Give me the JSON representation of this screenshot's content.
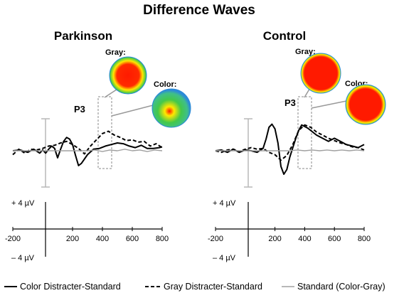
{
  "header": {
    "title": "Difference Waves"
  },
  "panels": [
    {
      "name": "Parkinson",
      "component_label": "P3",
      "topo_gray_label": "Gray:",
      "topo_color_label": "Color:"
    },
    {
      "name": "Control",
      "component_label": "P3",
      "topo_gray_label": "Gray:",
      "topo_color_label": "Color:"
    }
  ],
  "scale": {
    "pos_label": "+ 4 µV",
    "neg_label": "– 4 µV"
  },
  "legend": {
    "color_distracter": "Color Distracter-Standard",
    "gray_distracter": "Gray Distracter-Standard",
    "standard": "Standard (Color-Gray)"
  },
  "colors": {
    "topo_high": "#ff1a00",
    "topo_mid": "#ffe800",
    "topo_low": "#2b8ad8",
    "standard_line": "#a0a0a0"
  },
  "chart_data": [
    {
      "type": "line",
      "title": "Parkinson",
      "xlabel": "",
      "ylabel": "",
      "x_ticks": [
        "-200",
        "200",
        "400",
        "600",
        "800"
      ],
      "xlim": [
        -200,
        800
      ],
      "ylim": [
        -4,
        4
      ],
      "series": [
        {
          "name": "Color Distracter-Standard",
          "style": "solid",
          "x": [
            -200,
            -150,
            -100,
            -60,
            -20,
            0,
            20,
            40,
            60,
            80,
            100,
            120,
            140,
            160,
            180,
            200,
            220,
            240,
            260,
            300,
            340,
            380,
            420,
            460,
            500,
            540,
            580,
            620,
            660,
            700,
            740,
            780,
            800
          ],
          "y": [
            0,
            0.1,
            -0.2,
            0.2,
            -0.3,
            0.1,
            -0.3,
            0.2,
            0.6,
            0.3,
            -0.9,
            0.2,
            1.2,
            1.7,
            1.5,
            0.8,
            -0.6,
            -1.9,
            -1.6,
            -0.5,
            0.2,
            0.3,
            0.6,
            0.8,
            1.0,
            0.9,
            0.6,
            0.4,
            0.7,
            0.3,
            0.3,
            0.4,
            0.5
          ]
        },
        {
          "name": "Gray Distracter-Standard",
          "style": "dashed",
          "x": [
            -200,
            -160,
            -120,
            -80,
            -40,
            0,
            40,
            80,
            120,
            160,
            200,
            240,
            280,
            320,
            360,
            400,
            440,
            480,
            520,
            560,
            600,
            640,
            680,
            720,
            760,
            800
          ],
          "y": [
            -0.5,
            0.2,
            -0.3,
            0.2,
            0.1,
            0.3,
            0.6,
            0.7,
            1.0,
            1.2,
            0.8,
            0.3,
            -0.4,
            0.6,
            1.4,
            2.2,
            2.5,
            2.0,
            1.7,
            1.3,
            1.4,
            1.1,
            1.2,
            0.6,
            0.9,
            0.4
          ]
        },
        {
          "name": "Standard (Color-Gray)",
          "style": "gray",
          "x": [
            -200,
            -100,
            0,
            100,
            200,
            300,
            350,
            400,
            450,
            500,
            550,
            600,
            650,
            700,
            750,
            800
          ],
          "y": [
            0,
            0,
            0,
            0,
            0,
            0,
            0.1,
            -0.1,
            0.1,
            0,
            0.2,
            0,
            0.1,
            -0.1,
            0.1,
            0
          ]
        }
      ]
    },
    {
      "type": "line",
      "title": "Control",
      "xlabel": "",
      "ylabel": "",
      "x_ticks": [
        "-200",
        "200",
        "400",
        "600",
        "800"
      ],
      "xlim": [
        -200,
        800
      ],
      "ylim": [
        -4,
        4
      ],
      "series": [
        {
          "name": "Color Distracter-Standard",
          "style": "solid",
          "x": [
            -200,
            -160,
            -120,
            -80,
            -40,
            0,
            40,
            80,
            120,
            140,
            160,
            180,
            200,
            220,
            240,
            260,
            280,
            300,
            320,
            340,
            360,
            380,
            400,
            420,
            440,
            480,
            520,
            560,
            600,
            640,
            680,
            720,
            760,
            800
          ],
          "y": [
            0,
            0.1,
            -0.2,
            0.2,
            -0.2,
            0.1,
            0,
            -0.2,
            0.3,
            1.5,
            3.0,
            3.4,
            2.8,
            1.0,
            -2.0,
            -3.0,
            -2.4,
            -0.8,
            0.4,
            1.6,
            2.6,
            3.3,
            3.1,
            2.9,
            2.6,
            2.0,
            1.6,
            1.2,
            1.6,
            1.2,
            0.8,
            0.6,
            0.4,
            0.8
          ]
        },
        {
          "name": "Gray Distracter-Standard",
          "style": "dashed",
          "x": [
            -200,
            -160,
            -120,
            -80,
            -40,
            0,
            40,
            80,
            120,
            160,
            200,
            240,
            280,
            320,
            360,
            400,
            440,
            480,
            520,
            560,
            600,
            640,
            680,
            720,
            760,
            800
          ],
          "y": [
            0,
            -0.2,
            0.1,
            0.2,
            -0.1,
            0.2,
            0.4,
            0.2,
            0.3,
            -0.2,
            -0.5,
            -1.2,
            -0.6,
            0.8,
            2.6,
            3.3,
            3.0,
            2.4,
            2.0,
            1.6,
            1.3,
            1.0,
            0.8,
            0.5,
            0.4,
            0.1
          ]
        },
        {
          "name": "Standard (Color-Gray)",
          "style": "gray",
          "x": [
            -200,
            -100,
            0,
            100,
            200,
            300,
            350,
            400,
            450,
            500,
            550,
            600,
            650,
            700,
            750,
            800
          ],
          "y": [
            0,
            0,
            0,
            0,
            0,
            0,
            0.1,
            0,
            0.1,
            0,
            0.1,
            0,
            0.1,
            0,
            0.1,
            0
          ]
        }
      ]
    }
  ]
}
